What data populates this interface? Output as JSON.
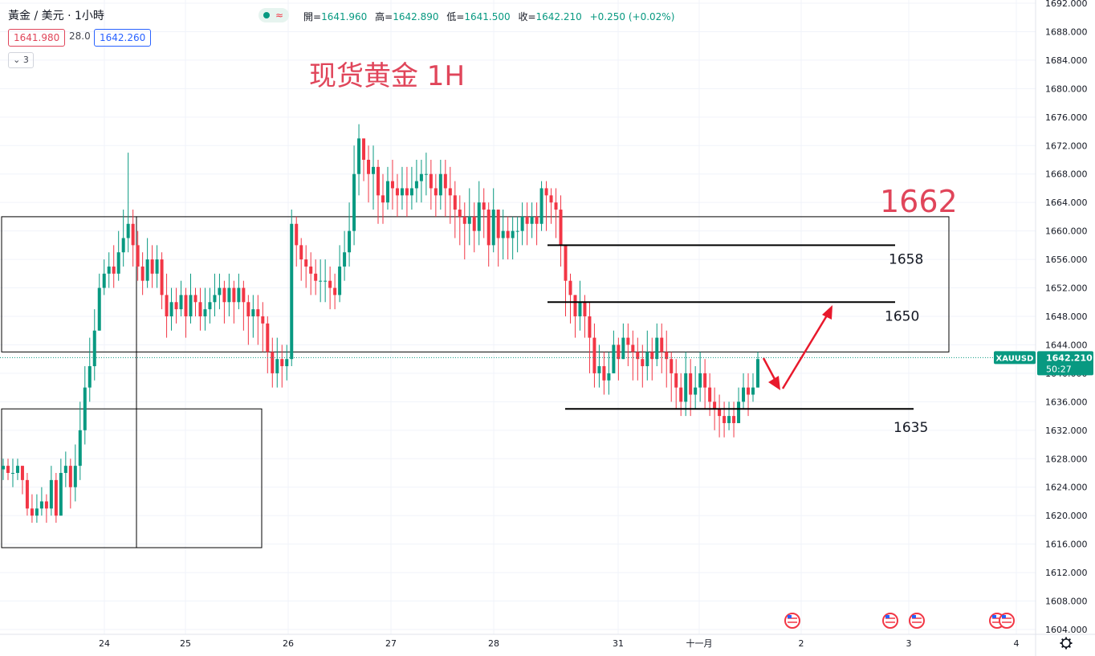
{
  "header": {
    "symbol": "黃金 / 美元 · 1小時",
    "bid": "1641.980",
    "spread": "28.0",
    "ask": "1642.260",
    "indicator_count": "3",
    "ohlc": {
      "open_label": "開=",
      "open": "1641.960",
      "high_label": "高=",
      "high": "1642.890",
      "low_label": "低=",
      "low": "1641.500",
      "close_label": "收=",
      "close": "1642.210",
      "change": "+0.250 (+0.02%)"
    }
  },
  "chart_data": {
    "type": "candlestick",
    "title": "现货黄金 1H",
    "symbol_tag": "XAUUSD",
    "last_price": "1642.210",
    "countdown": "50:27",
    "ylim": [
      1604,
      1692
    ],
    "y_ticks": [
      "1692.000",
      "1688.000",
      "1684.000",
      "1680.000",
      "1676.000",
      "1672.000",
      "1668.000",
      "1664.000",
      "1660.000",
      "1656.000",
      "1652.000",
      "1648.000",
      "1644.000",
      "1640.000",
      "1636.000",
      "1632.000",
      "1628.000",
      "1624.000",
      "1620.000",
      "1616.000",
      "1612.000",
      "1608.000",
      "1604.000"
    ],
    "x_ticks": [
      "24",
      "25",
      "26",
      "27",
      "28",
      "31",
      "十一月",
      "2",
      "3",
      "4"
    ],
    "levels": [
      {
        "label": "1662",
        "value": 1662
      },
      {
        "label": "1658",
        "value": 1658
      },
      {
        "label": "1650",
        "value": 1650
      },
      {
        "label": "1635",
        "value": 1635
      }
    ],
    "series_close": [
      1627,
      1626,
      1626,
      1627,
      1625,
      1621,
      1620,
      1621,
      1622,
      1621,
      1625,
      1620,
      1626,
      1627,
      1624,
      1627,
      1632,
      1638,
      1641,
      1646,
      1652,
      1654,
      1655,
      1654,
      1657,
      1659,
      1661,
      1658,
      1655,
      1653,
      1656,
      1654,
      1656,
      1651,
      1648,
      1650,
      1649,
      1651,
      1648,
      1651,
      1650,
      1648,
      1649,
      1650,
      1651,
      1652,
      1650,
      1652,
      1650,
      1652,
      1650,
      1648,
      1649,
      1648,
      1647,
      1643,
      1640,
      1642,
      1641,
      1642,
      1661,
      1658,
      1656,
      1655,
      1654,
      1653,
      1653,
      1653,
      1652,
      1651,
      1655,
      1657,
      1660,
      1668,
      1673,
      1670,
      1668,
      1669,
      1665,
      1664,
      1667,
      1666,
      1665,
      1666,
      1665,
      1666,
      1667,
      1668,
      1668,
      1666,
      1665,
      1668,
      1666,
      1665,
      1663,
      1662,
      1661,
      1662,
      1660,
      1664,
      1663,
      1658,
      1663,
      1659,
      1660,
      1659,
      1660,
      1660,
      1662,
      1661,
      1662,
      1661,
      1666,
      1665,
      1664,
      1663,
      1658,
      1653,
      1651,
      1648,
      1650,
      1648,
      1645,
      1640,
      1641,
      1639,
      1640,
      1644,
      1642,
      1645,
      1644,
      1643,
      1642,
      1641,
      1643,
      1642,
      1645,
      1643,
      1642,
      1640,
      1638,
      1636,
      1640,
      1637,
      1638,
      1640,
      1638,
      1636,
      1635,
      1634,
      1633,
      1634,
      1633,
      1636,
      1638,
      1637,
      1638,
      1642
    ],
    "series_high": [
      1628,
      1628,
      1628,
      1628,
      1627,
      1626,
      1623,
      1623,
      1624,
      1623,
      1627,
      1626,
      1628,
      1629,
      1628,
      1630,
      1636,
      1641,
      1645,
      1649,
      1654,
      1656,
      1657,
      1658,
      1660,
      1663,
      1671,
      1663,
      1660,
      1657,
      1659,
      1658,
      1658,
      1657,
      1654,
      1652,
      1652,
      1653,
      1652,
      1654,
      1652,
      1652,
      1652,
      1652,
      1654,
      1654,
      1653,
      1654,
      1653,
      1654,
      1653,
      1651,
      1651,
      1651,
      1650,
      1648,
      1645,
      1645,
      1644,
      1644,
      1663,
      1662,
      1659,
      1658,
      1657,
      1656,
      1656,
      1656,
      1655,
      1654,
      1658,
      1660,
      1664,
      1672,
      1675,
      1673,
      1672,
      1672,
      1670,
      1668,
      1669,
      1670,
      1668,
      1669,
      1669,
      1669,
      1670,
      1670,
      1671,
      1670,
      1668,
      1670,
      1670,
      1669,
      1667,
      1665,
      1664,
      1666,
      1664,
      1667,
      1666,
      1664,
      1666,
      1662,
      1663,
      1662,
      1662,
      1662,
      1664,
      1664,
      1664,
      1664,
      1667,
      1667,
      1666,
      1666,
      1665,
      1658,
      1654,
      1651,
      1653,
      1651,
      1650,
      1647,
      1644,
      1643,
      1643,
      1646,
      1645,
      1647,
      1647,
      1646,
      1645,
      1644,
      1646,
      1645,
      1647,
      1647,
      1646,
      1643,
      1642,
      1640,
      1643,
      1642,
      1641,
      1643,
      1642,
      1640,
      1638,
      1637,
      1636,
      1636,
      1636,
      1638,
      1640,
      1640,
      1640,
      1643
    ],
    "series_low": [
      1625,
      1625,
      1624,
      1625,
      1623,
      1620,
      1619,
      1619,
      1620,
      1619,
      1620,
      1619,
      1621,
      1624,
      1621,
      1622,
      1625,
      1630,
      1636,
      1639,
      1646,
      1651,
      1652,
      1652,
      1653,
      1655,
      1657,
      1655,
      1653,
      1651,
      1652,
      1652,
      1652,
      1649,
      1645,
      1646,
      1647,
      1648,
      1645,
      1647,
      1648,
      1646,
      1646,
      1647,
      1648,
      1649,
      1647,
      1648,
      1647,
      1649,
      1646,
      1644,
      1645,
      1644,
      1643,
      1640,
      1638,
      1638,
      1638,
      1639,
      1641,
      1655,
      1653,
      1652,
      1651,
      1651,
      1650,
      1650,
      1649,
      1649,
      1650,
      1653,
      1655,
      1658,
      1665,
      1667,
      1664,
      1663,
      1661,
      1661,
      1663,
      1663,
      1662,
      1663,
      1662,
      1663,
      1664,
      1664,
      1665,
      1663,
      1662,
      1663,
      1662,
      1661,
      1659,
      1658,
      1656,
      1658,
      1657,
      1658,
      1659,
      1655,
      1657,
      1655,
      1656,
      1656,
      1656,
      1657,
      1658,
      1658,
      1659,
      1658,
      1660,
      1660,
      1661,
      1659,
      1655,
      1648,
      1647,
      1645,
      1646,
      1645,
      1640,
      1638,
      1638,
      1637,
      1637,
      1640,
      1639,
      1642,
      1641,
      1639,
      1639,
      1638,
      1639,
      1639,
      1641,
      1640,
      1638,
      1636,
      1635,
      1634,
      1634,
      1634,
      1635,
      1636,
      1635,
      1634,
      1632,
      1631,
      1631,
      1632,
      1631,
      1633,
      1635,
      1634,
      1636,
      1640
    ]
  },
  "colors": {
    "up": "#089981",
    "down": "#f23645",
    "level_line": "#000000",
    "title": "#e0455a",
    "arrow": "#e8192c"
  }
}
